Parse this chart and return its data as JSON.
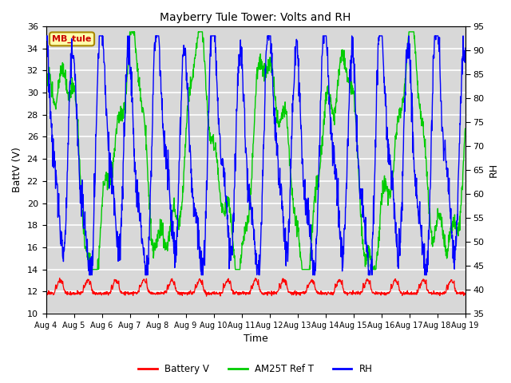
{
  "title": "Mayberry Tule Tower: Volts and RH",
  "xlabel": "Time",
  "ylabel_left": "BattV (V)",
  "ylabel_right": "RH",
  "station_label": "MB_tule",
  "ylim_left": [
    10,
    36
  ],
  "ylim_right": [
    35,
    95
  ],
  "yticks_left": [
    10,
    12,
    14,
    16,
    18,
    20,
    22,
    24,
    26,
    28,
    30,
    32,
    34,
    36
  ],
  "yticks_right": [
    35,
    40,
    45,
    50,
    55,
    60,
    65,
    70,
    75,
    80,
    85,
    90,
    95
  ],
  "xtick_labels": [
    "Aug 4",
    "Aug 5",
    "Aug 6",
    "Aug 7",
    "Aug 8",
    "Aug 9",
    "Aug 10",
    "Aug 11",
    "Aug 12",
    "Aug 13",
    "Aug 14",
    "Aug 15",
    "Aug 16",
    "Aug 17",
    "Aug 18",
    "Aug 19"
  ],
  "color_battery": "#ff0000",
  "color_am25t": "#00cc00",
  "color_rh": "#0000ff",
  "legend_labels": [
    "Battery V",
    "AM25T Ref T",
    "RH"
  ],
  "background_color": "#d8d8d8",
  "grid_color": "#ffffff",
  "n_days": 15,
  "pts_per_day": 96,
  "title_fontsize": 10,
  "axis_fontsize": 9,
  "tick_fontsize": 8
}
